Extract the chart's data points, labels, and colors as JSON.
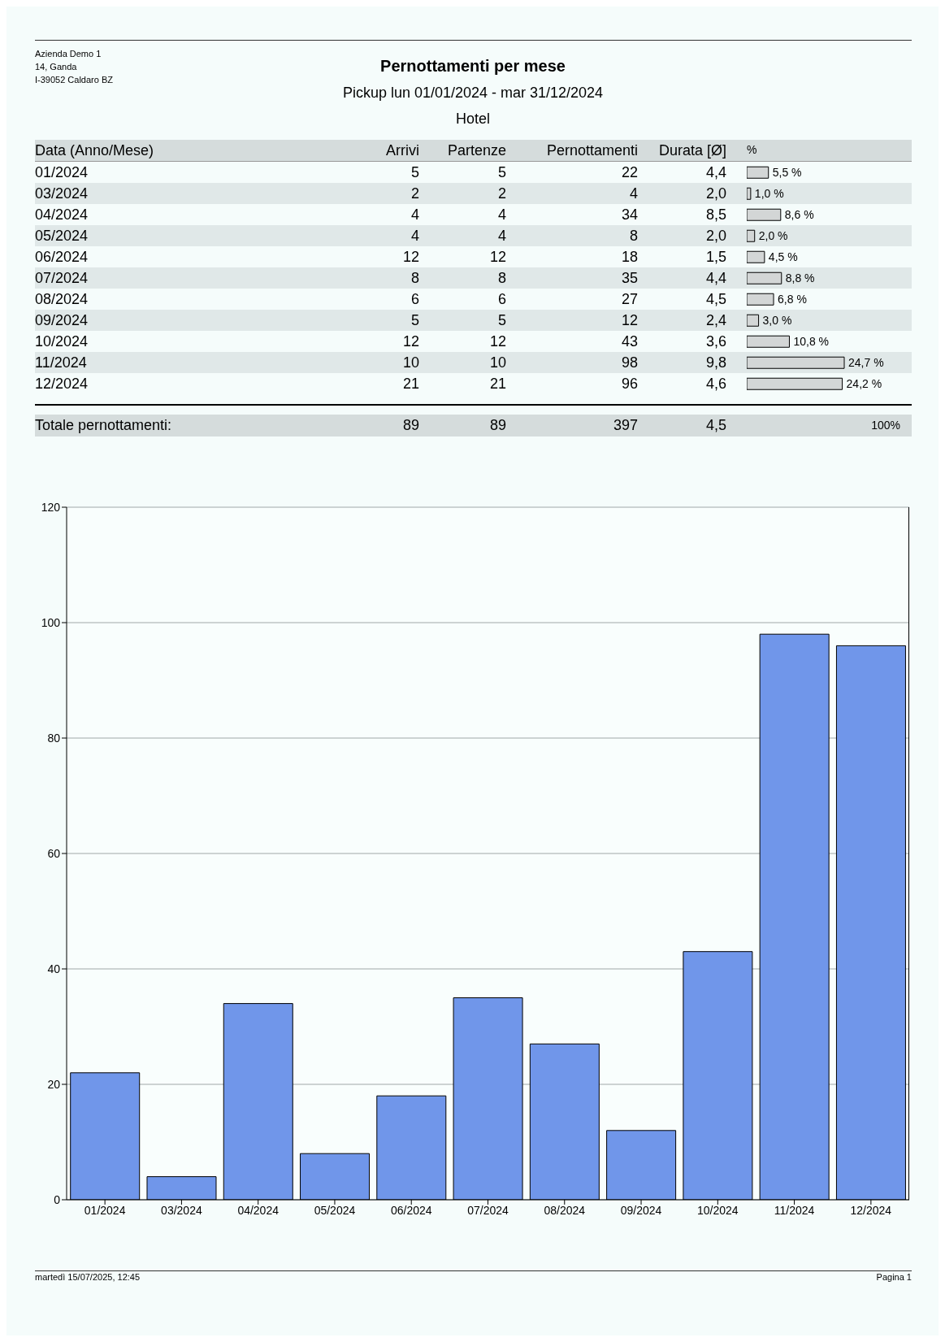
{
  "chart_data": [
    {
      "type": "other",
      "title": "Pernottamenti per mese",
      "subtitle": "Pickup lun 01/01/2024 - mar 31/12/2024",
      "annotations": [
        "Azienda Demo 1",
        "14, Ganda",
        "I-39052 Caldaro BZ",
        "Hotel",
        "Data (Anno/Mese)",
        "Arrivi",
        "Partenze",
        "Pernottamenti",
        "Durata [Ø]",
        "%",
        "01/2024",
        "5",
        "5",
        "22",
        "4,4",
        "03/2024",
        "2",
        "2",
        "4",
        "2,0",
        "04/2024",
        "4",
        "4",
        "34",
        "8,5",
        "05/2024",
        "4",
        "4",
        "8",
        "2,0",
        "06/2024",
        "12",
        "12",
        "18",
        "1,5",
        "07/2024",
        "8",
        "8",
        "35",
        "4,4",
        "08/2024",
        "6",
        "6",
        "27",
        "4,5",
        "09/2024",
        "5",
        "5",
        "12",
        "2,4",
        "10/2024",
        "12",
        "12",
        "43",
        "3,6",
        "11/2024",
        "10",
        "10",
        "98",
        "9,8",
        "12/2024",
        "21",
        "21",
        "96",
        "4,6",
        "Totale pernottamenti:",
        "89",
        "89",
        "397",
        "4,5",
        "100%",
        "martedì 15/07/2025, 12:45",
        "Pagina 1"
      ]
    },
    {
      "type": "bar",
      "orientation": "horizontal",
      "categories": [
        null,
        null,
        null,
        null,
        null,
        null,
        null,
        null,
        null,
        null,
        null
      ],
      "values": [
        5.5,
        1.0,
        8.6,
        2.0,
        4.5,
        8.8,
        6.8,
        3.0,
        10.8,
        24.7,
        24.2
      ],
      "color": "#d3d6d6",
      "value_labels": [
        "5,5 %",
        "1,0 %",
        "8,6 %",
        "2,0 %",
        "4,5 %",
        "8,8 %",
        "6,8 %",
        "3,0 %",
        "10,8 %",
        "24,7 %",
        "24,2 %"
      ]
    },
    {
      "type": "bar",
      "categories": [
        "01/2024",
        "03/2024",
        "04/2024",
        "05/2024",
        "06/2024",
        "07/2024",
        "08/2024",
        "09/2024",
        "10/2024",
        "11/2024",
        "12/2024"
      ],
      "values": [
        22,
        4,
        34,
        8,
        18,
        35,
        27,
        12,
        43,
        98,
        96
      ],
      "color": "#7096ea",
      "ylim": [
        0,
        120
      ],
      "yticks": [
        0,
        20,
        40,
        60,
        80,
        100,
        120
      ],
      "grid": "y"
    }
  ]
}
